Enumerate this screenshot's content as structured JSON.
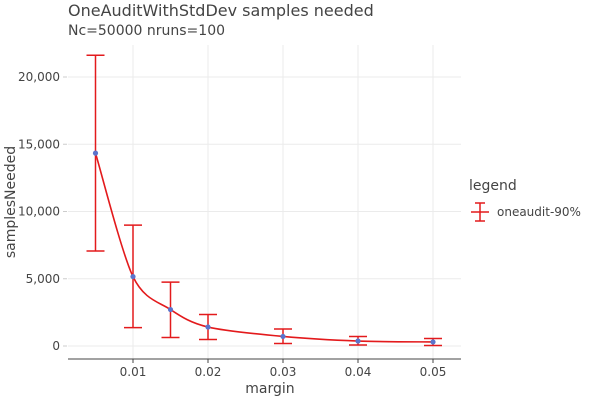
{
  "chart_data": {
    "type": "line",
    "title": "OneAuditWithStdDev samples needed",
    "subtitle": "Nc=50000 nruns=100",
    "xlabel": "margin",
    "ylabel": "samplesNeeded",
    "x": [
      0.005,
      0.01,
      0.015,
      0.02,
      0.03,
      0.04,
      0.05
    ],
    "series": [
      {
        "name": "oneaudit-90%",
        "values": [
          14340,
          5160,
          2710,
          1410,
          710,
          370,
          300
        ],
        "error_upper": [
          21620,
          8990,
          4750,
          2340,
          1260,
          710,
          560
        ],
        "error_lower": [
          7060,
          1370,
          630,
          480,
          190,
          70,
          40
        ],
        "line_color": "#e31a1c",
        "marker_color": "#5b74cc"
      }
    ],
    "xticks": [
      0.01,
      0.02,
      0.03,
      0.04,
      0.05
    ],
    "xtick_labels": [
      "0.01",
      "0.02",
      "0.03",
      "0.04",
      "0.05"
    ],
    "yticks": [
      0,
      5000,
      10000,
      15000,
      20000
    ],
    "ytick_labels": [
      "0",
      "5,000",
      "10,000",
      "15,000",
      "20,000"
    ],
    "xlim": [
      0.0026,
      0.0549
    ],
    "ylim": [
      -950,
      22350
    ],
    "grid": true,
    "legend_title": "legend",
    "legend_position": "right"
  }
}
